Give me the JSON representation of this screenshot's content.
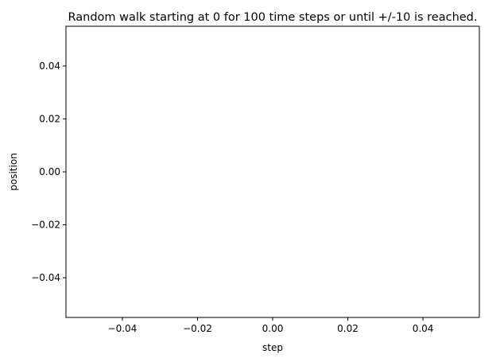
{
  "chart_data": {
    "type": "line",
    "title": "Random walk starting at 0 for 100 time steps or until +/-10 is reached.",
    "xlabel": "step",
    "ylabel": "position",
    "xlim": [
      -0.055,
      0.055
    ],
    "ylim": [
      -0.055,
      0.055
    ],
    "xticks": [
      -0.04,
      -0.02,
      0.0,
      0.02,
      0.04
    ],
    "xtick_labels": [
      "−0.04",
      "−0.02",
      "0.00",
      "0.02",
      "0.04"
    ],
    "yticks": [
      -0.04,
      -0.02,
      0.0,
      0.02,
      0.04
    ],
    "ytick_labels": [
      "−0.04",
      "−0.02",
      "0.00",
      "0.02",
      "0.04"
    ],
    "grid": false,
    "series": [
      {
        "x": [],
        "y": []
      }
    ],
    "colors": {
      "axes": "#000000",
      "background": "#ffffff",
      "series": "#1f77b4"
    }
  }
}
